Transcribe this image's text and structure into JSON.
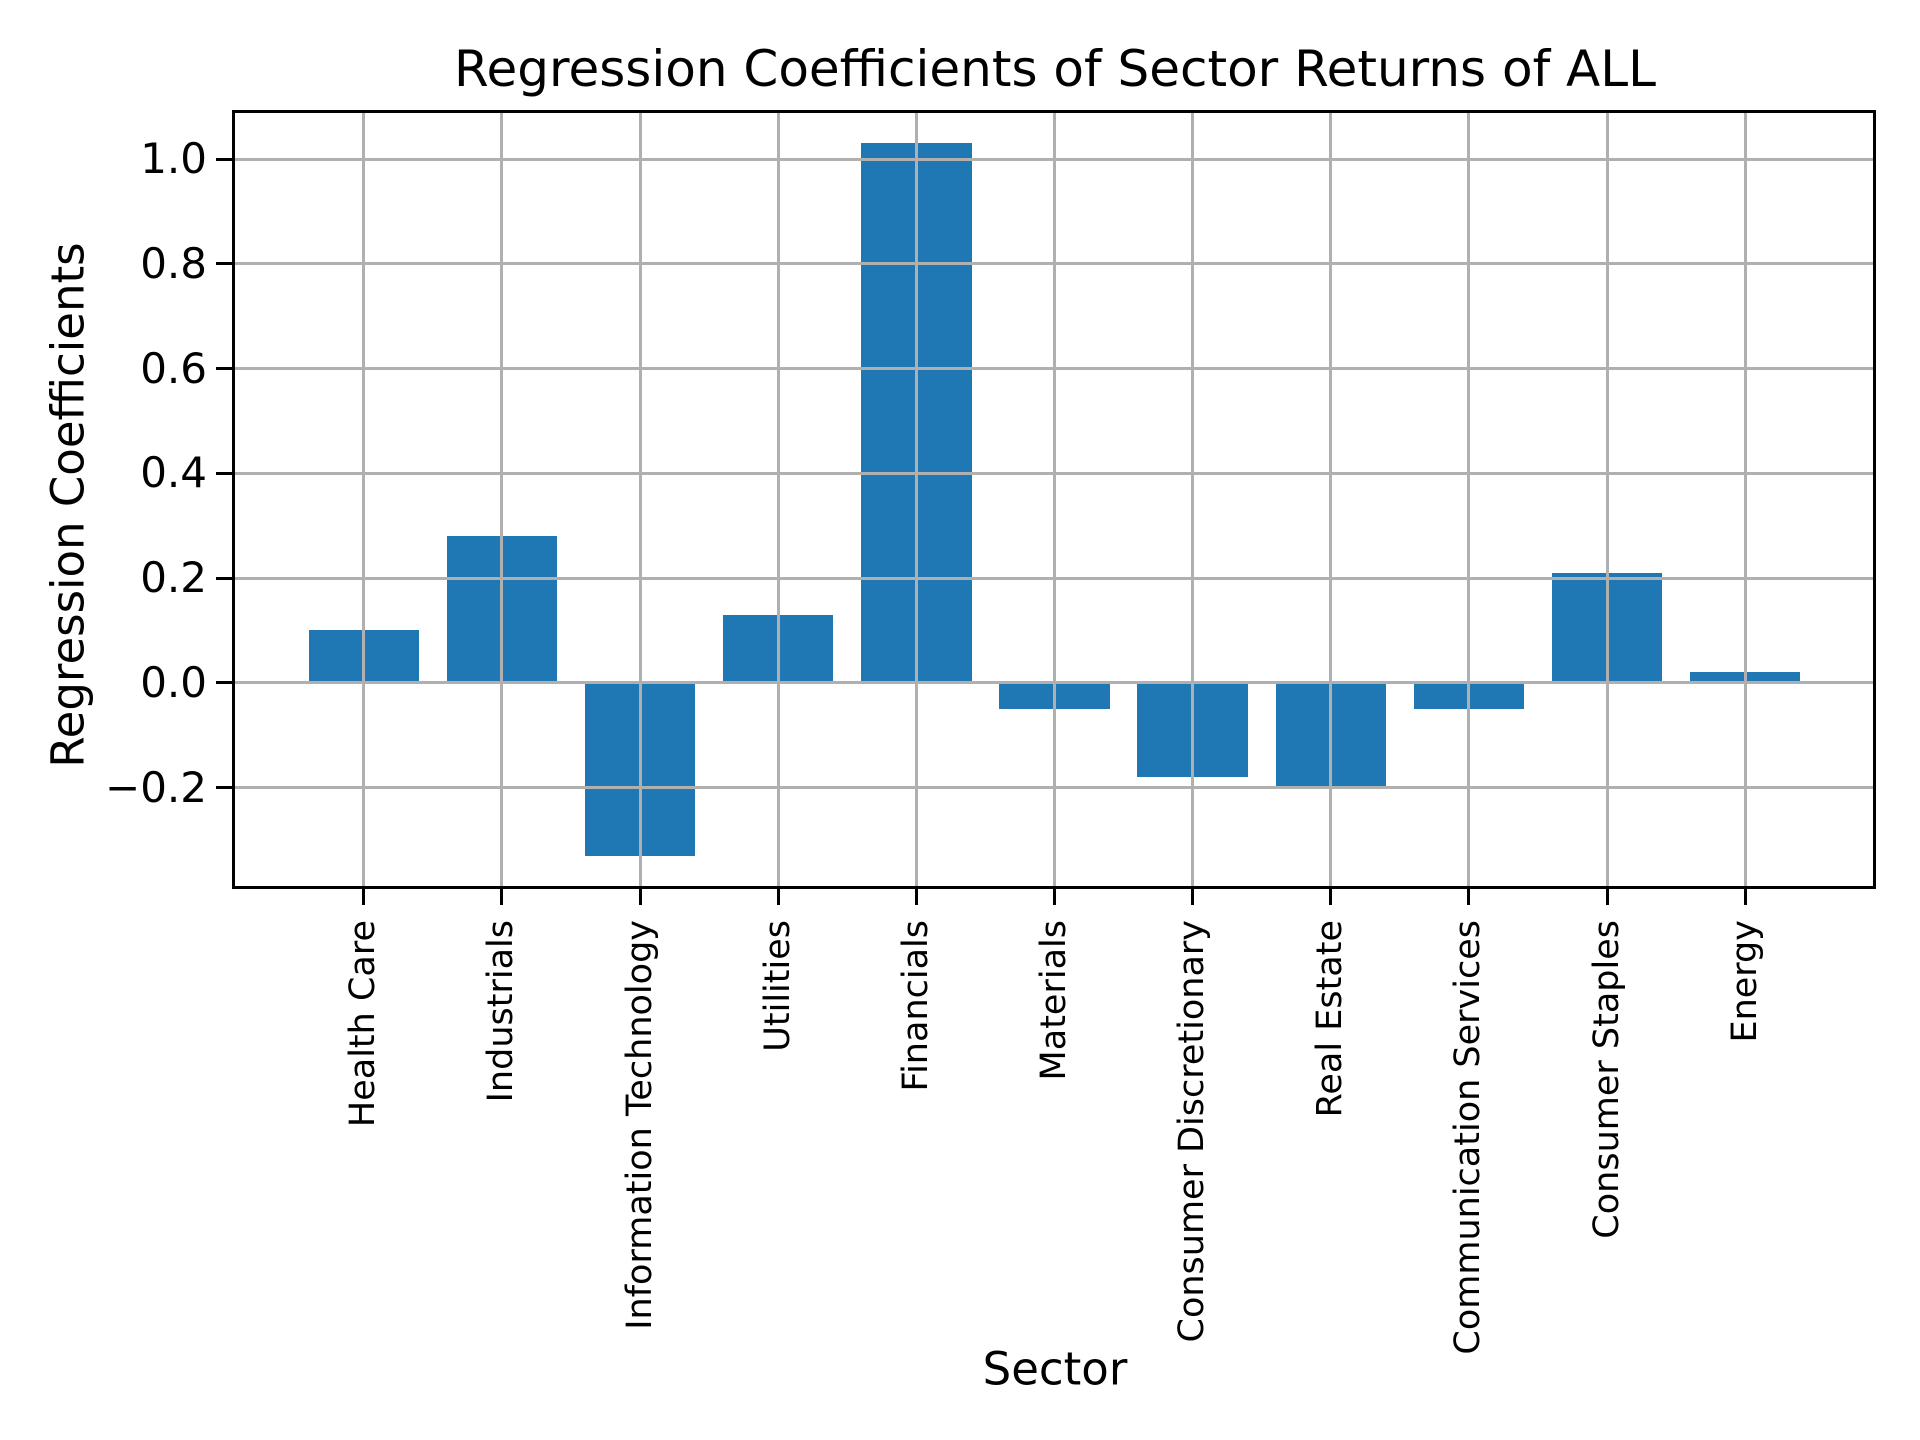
{
  "chart_data": {
    "type": "bar",
    "title": "Regression Coefficients of Sector Returns of ALL",
    "xlabel": "Sector",
    "ylabel": "Regression Coefficients",
    "categories": [
      "Health Care",
      "Industrials",
      "Information Technology",
      "Utilities",
      "Financials",
      "Materials",
      "Consumer Discretionary",
      "Real Estate",
      "Communication Services",
      "Consumer Staples",
      "Energy"
    ],
    "values": [
      0.1,
      0.28,
      -0.33,
      0.13,
      1.03,
      -0.05,
      -0.18,
      -0.2,
      -0.05,
      0.21,
      0.02
    ],
    "yticks": [
      1.0,
      0.8,
      0.6,
      0.4,
      0.2,
      0.0,
      -0.2
    ],
    "ytick_labels": [
      "1.0",
      "0.8",
      "0.6",
      "0.4",
      "0.2",
      "0.0",
      "−0.2"
    ],
    "ylim": [
      -0.39,
      1.09
    ],
    "xlim": [
      -0.94,
      10.94
    ],
    "bar_width": 0.8,
    "grid": "on",
    "grid_over_bars": true,
    "legend": "none",
    "colors": {
      "bar": "#1f77b4",
      "grid": "#b0b0b0",
      "spine": "#000000",
      "text": "#000000",
      "background": "#ffffff"
    }
  }
}
